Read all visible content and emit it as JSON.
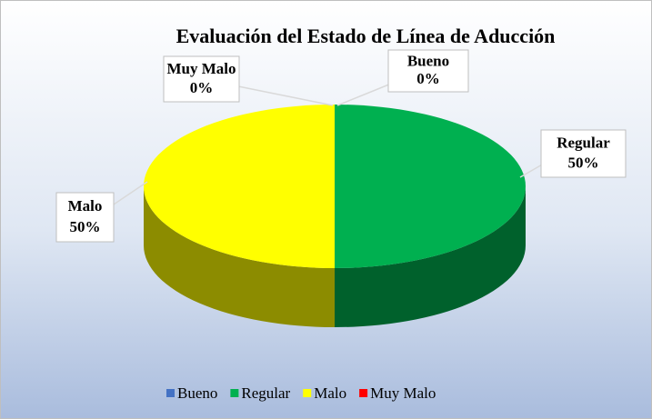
{
  "chart_data": {
    "type": "pie",
    "title": "Evaluación del Estado de Línea de Aducción",
    "categories": [
      "Bueno",
      "Regular",
      "Malo",
      "Muy Malo"
    ],
    "values": [
      0,
      50,
      50,
      0
    ],
    "value_labels": [
      "0%",
      "50%",
      "50%",
      "0%"
    ],
    "colors": [
      "#4472c4",
      "#00b050",
      "#ffff00",
      "#ff0000"
    ],
    "legend": "bottom"
  }
}
